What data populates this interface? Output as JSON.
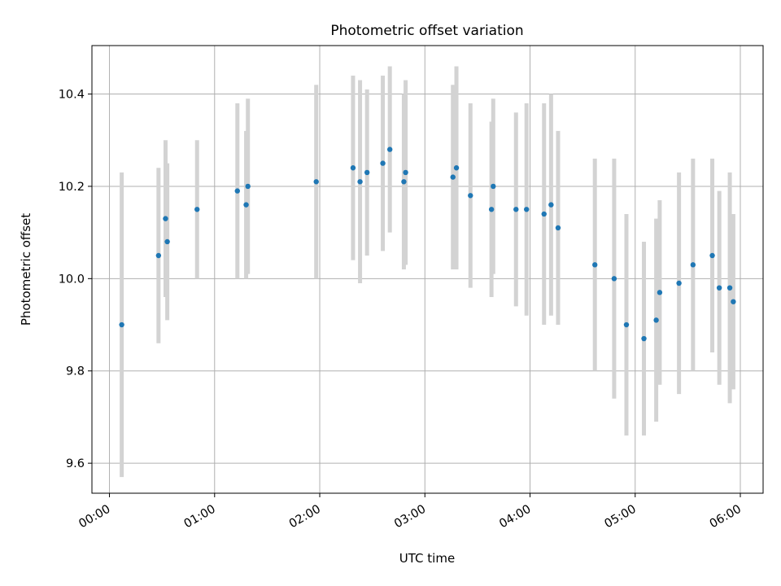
{
  "chart_data": {
    "type": "scatter",
    "title": "Photometric offset variation",
    "xlabel": "UTC time",
    "ylabel": "Photometric offset",
    "x_ticks": [
      "00:00",
      "01:00",
      "02:00",
      "03:00",
      "04:00",
      "05:00",
      "06:00"
    ],
    "y_ticks": [
      "9.6",
      "9.8",
      "10.0",
      "10.2",
      "10.4"
    ],
    "xlim": [
      "23:50",
      "06:13"
    ],
    "ylim": [
      9.535,
      10.505
    ],
    "grid": true,
    "colors": {
      "point": "#1f77b4",
      "errorbar": "#d3d3d3",
      "grid": "#b0b0b0"
    },
    "series": [
      {
        "x": [
          "00:07",
          "00:28",
          "00:32",
          "00:33",
          "00:50",
          "01:13",
          "01:18",
          "01:19",
          "01:58",
          "02:19",
          "02:23",
          "02:27",
          "02:36",
          "02:40",
          "02:48",
          "02:49",
          "03:16",
          "03:18",
          "03:26",
          "03:38",
          "03:39",
          "03:52",
          "03:58",
          "04:08",
          "04:12",
          "04:16",
          "04:37",
          "04:48",
          "04:55",
          "05:05",
          "05:12",
          "05:14",
          "05:25",
          "05:33",
          "05:44",
          "05:48",
          "05:54",
          "05:56"
        ],
        "y": [
          9.9,
          10.05,
          10.13,
          10.08,
          10.15,
          10.19,
          10.16,
          10.2,
          10.21,
          10.24,
          10.21,
          10.23,
          10.25,
          10.28,
          10.21,
          10.23,
          10.22,
          10.24,
          10.18,
          10.15,
          10.2,
          10.15,
          10.15,
          10.14,
          10.16,
          10.11,
          10.03,
          10.0,
          9.9,
          9.87,
          9.91,
          9.97,
          9.99,
          10.03,
          10.05,
          9.98,
          9.98,
          9.95
        ],
        "err": [
          0.33,
          0.19,
          0.17,
          0.17,
          0.15,
          0.19,
          0.16,
          0.19,
          0.21,
          0.2,
          0.22,
          0.18,
          0.19,
          0.18,
          0.19,
          0.2,
          0.2,
          0.22,
          0.2,
          0.19,
          0.19,
          0.21,
          0.23,
          0.24,
          0.24,
          0.21,
          0.23,
          0.26,
          0.24,
          0.21,
          0.22,
          0.2,
          0.24,
          0.23,
          0.21,
          0.21,
          0.25,
          0.19
        ]
      }
    ]
  }
}
